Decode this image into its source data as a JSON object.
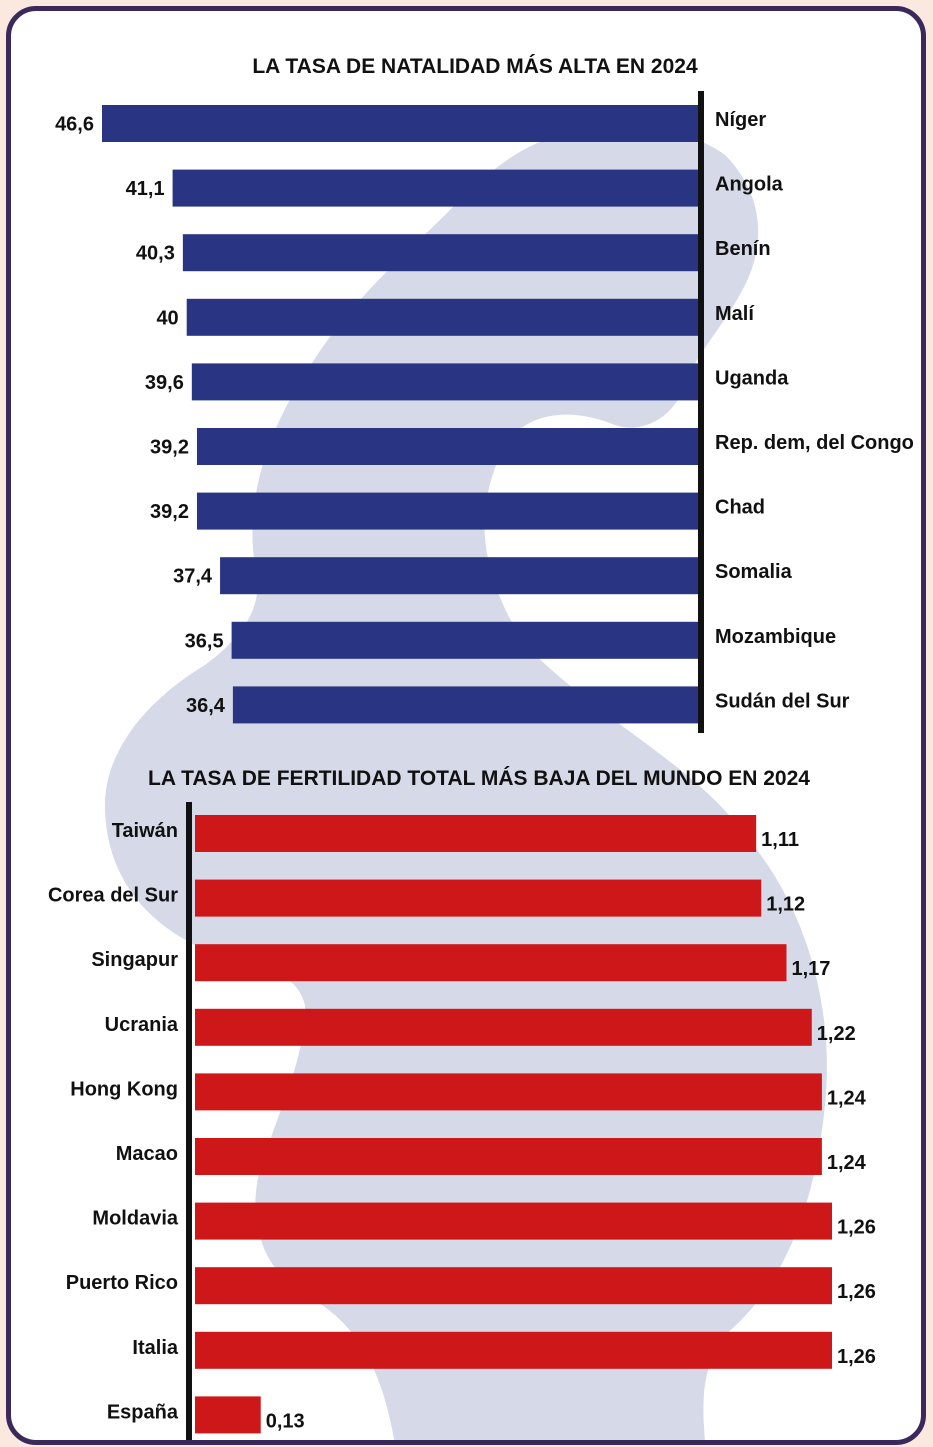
{
  "colors": {
    "birth_bar": "#293583",
    "fertility_bar": "#cd1719",
    "silhouette": "#d6d9e7",
    "border": "#3a2a5c",
    "page": "#fbe9df"
  },
  "chart_data": [
    {
      "type": "bar",
      "orientation": "horizontal",
      "direction": "right-to-left",
      "title": "LA TASA DE NATALIDAD MÁS ALTA EN 2024",
      "categories": [
        "Níger",
        "Angola",
        "Benín",
        "Malí",
        "Uganda",
        "Rep. dem, del Congo",
        "Chad",
        "Somalia",
        "Mozambique",
        "Sudán del Sur"
      ],
      "values": [
        46.6,
        41.1,
        40.3,
        40,
        39.6,
        39.2,
        39.2,
        37.4,
        36.5,
        36.4
      ],
      "value_labels": [
        "46,6",
        "41,1",
        "40,3",
        "40",
        "39,6",
        "39,2",
        "39,2",
        "37,4",
        "36,5",
        "36,4"
      ],
      "color": "#293583"
    },
    {
      "type": "bar",
      "orientation": "horizontal",
      "direction": "left-to-right",
      "title": "LA TASA DE FERTILIDAD TOTAL MÁS BAJA DEL MUNDO EN 2024",
      "categories": [
        "Taiwán",
        "Corea del Sur",
        "Singapur",
        "Ucrania",
        "Hong Kong",
        "Macao",
        "Moldavia",
        "Puerto Rico",
        "Italia",
        "España"
      ],
      "values": [
        1.11,
        1.12,
        1.17,
        1.22,
        1.24,
        1.24,
        1.26,
        1.26,
        1.26,
        0.13
      ],
      "value_labels": [
        "1,11",
        "1,12",
        "1,17",
        "1,22",
        "1,24",
        "1,24",
        "1,26",
        "1,26",
        "1,26",
        "0,13"
      ],
      "color": "#cd1719"
    }
  ]
}
